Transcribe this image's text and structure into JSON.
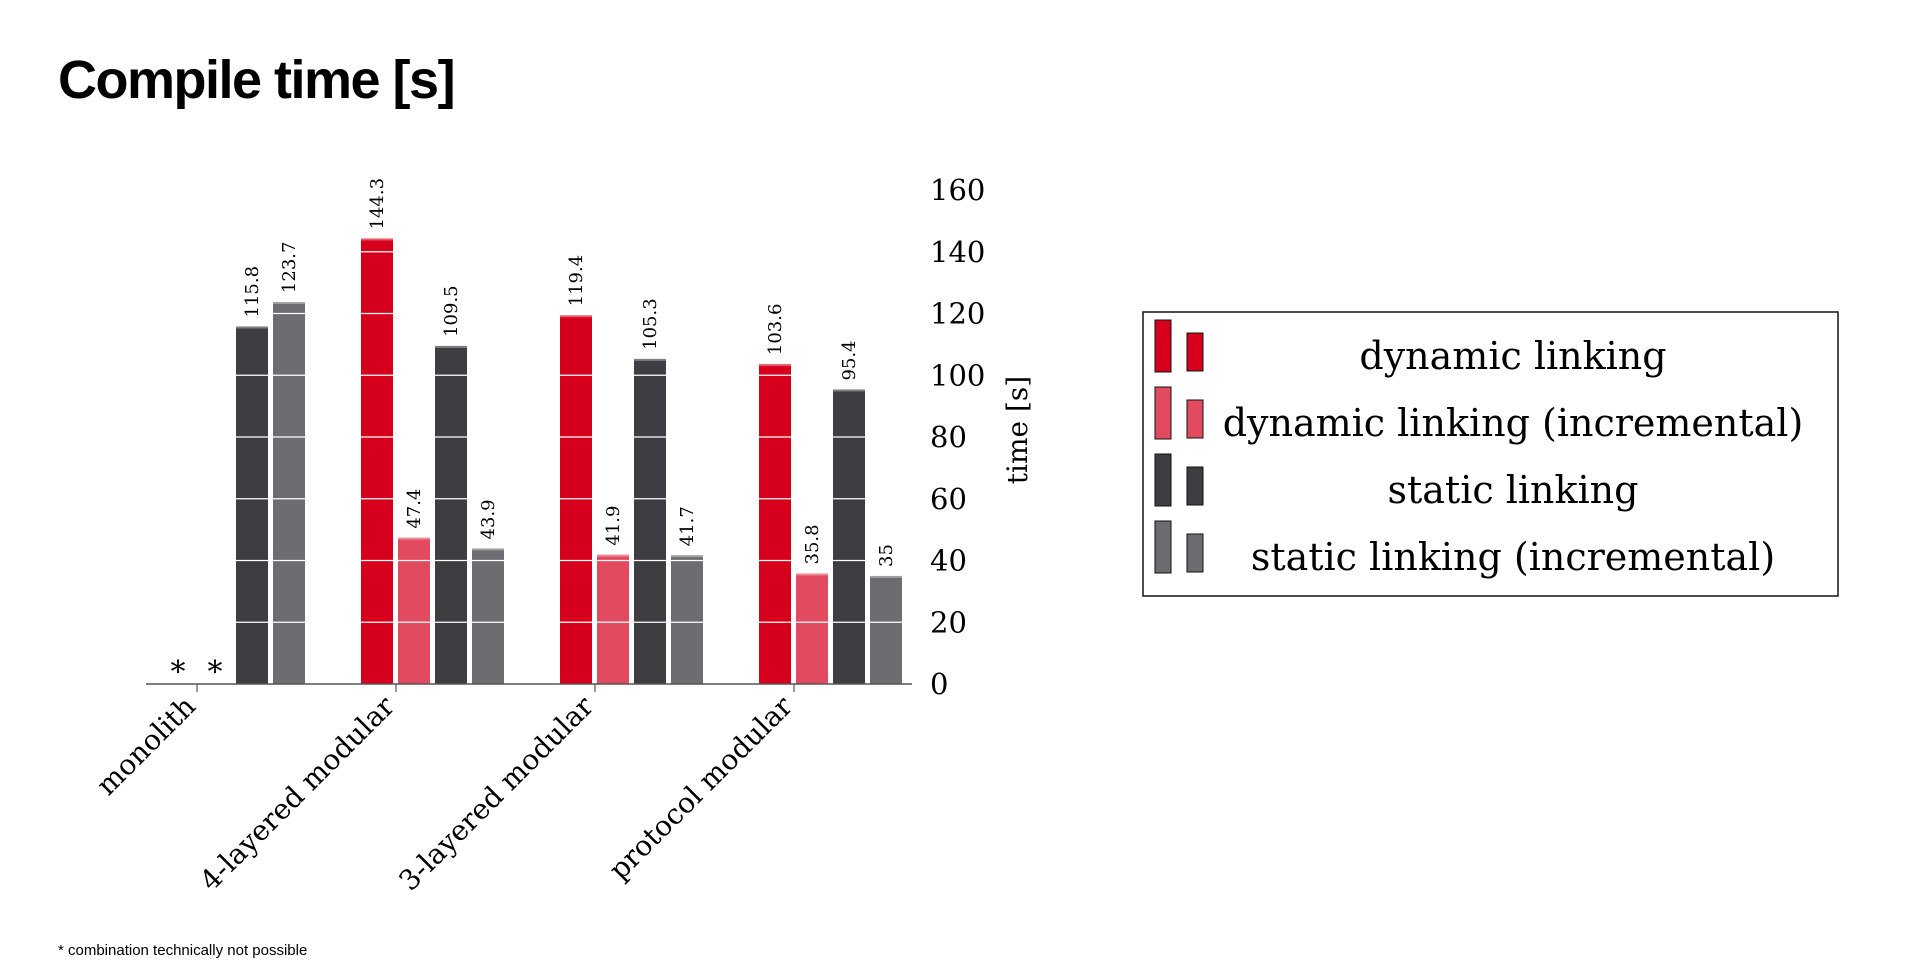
{
  "page": {
    "title": "Compile time [s]",
    "footnote": "* combination technically not possible"
  },
  "chart_data": {
    "type": "bar",
    "title": "Compile time [s]",
    "categories": [
      "monolith",
      "4-layered modular",
      "3-layered modular",
      "protocol modular"
    ],
    "series": [
      {
        "name": "dynamic linking",
        "color": "#d6001c",
        "values": [
          null,
          144.3,
          119.4,
          103.6
        ],
        "labels": [
          "",
          "144.3",
          "119.4",
          "103.6"
        ]
      },
      {
        "name": "dynamic linking (incremental)",
        "color": "#e24a5f",
        "values": [
          null,
          47.4,
          41.9,
          35.8
        ],
        "labels": [
          "",
          "47.4",
          "41.9",
          "35.8"
        ]
      },
      {
        "name": "static linking",
        "color": "#3e3d41",
        "values": [
          115.8,
          109.5,
          105.3,
          95.4
        ],
        "labels": [
          "115.8",
          "109.5",
          "105.3",
          "95.4"
        ]
      },
      {
        "name": "static linking (incremental)",
        "color": "#6d6c71",
        "values": [
          123.7,
          43.9,
          41.7,
          35
        ],
        "labels": [
          "123.7",
          "43.9",
          "41.7",
          "35"
        ]
      }
    ],
    "missing_marker": "*",
    "xlabel": "",
    "ylabel": "time [s]",
    "ylim": [
      0,
      160
    ],
    "yticks": [
      "0",
      "20",
      "40",
      "60",
      "80",
      "100",
      "120",
      "140",
      "160"
    ],
    "y_axis_side": "right",
    "legend_position": "right",
    "grid": "white lines across bars"
  }
}
